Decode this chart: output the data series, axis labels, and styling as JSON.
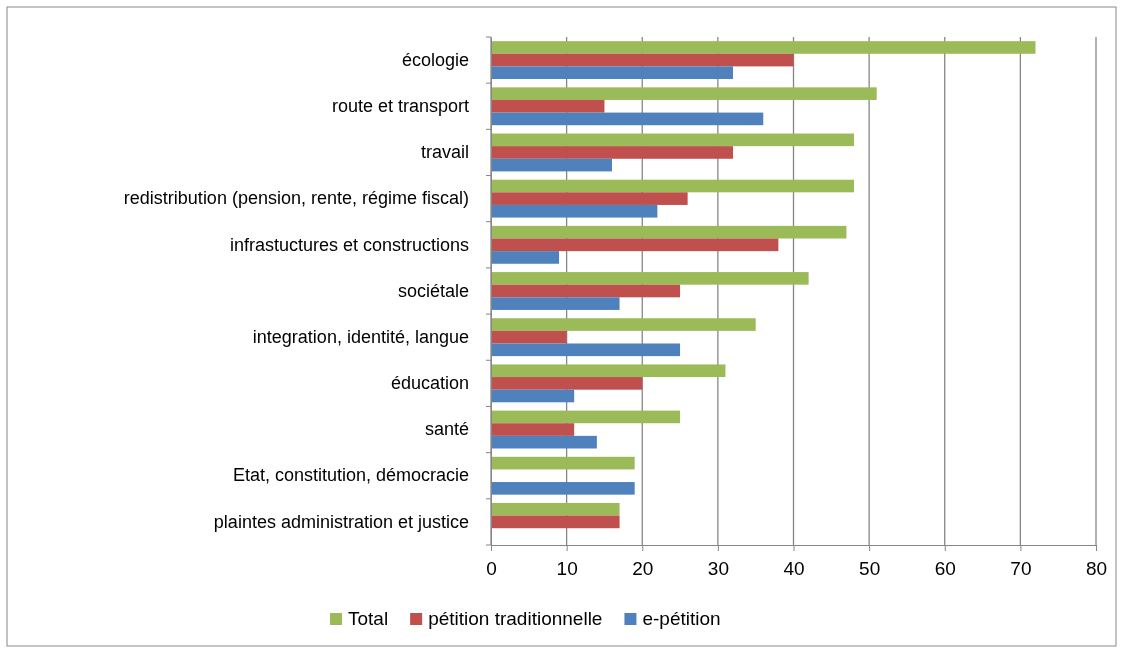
{
  "chart_data": {
    "type": "bar",
    "orientation": "horizontal",
    "categories": [
      "écologie",
      "route et transport",
      "travail",
      "redistribution (pension, rente, régime fiscal)",
      "infrastuctures et constructions",
      "sociétale",
      "integration, identité, langue",
      "éducation",
      "santé ",
      "Etat, constitution, démocracie",
      "plaintes administration et justice"
    ],
    "series": [
      {
        "name": "Total",
        "color": "#9bbb59",
        "values": [
          72,
          51,
          48,
          48,
          47,
          42,
          35,
          31,
          25,
          19,
          17
        ]
      },
      {
        "name": "pétition traditionnelle",
        "color": "#c0504d",
        "values": [
          40,
          15,
          32,
          26,
          38,
          25,
          10,
          20,
          11,
          null,
          17
        ]
      },
      {
        "name": "e-pétition",
        "color": "#4f81bd",
        "values": [
          32,
          36,
          16,
          22,
          9,
          17,
          25,
          11,
          14,
          19,
          null
        ]
      }
    ],
    "xlim": [
      0,
      80
    ],
    "xticks": [
      0,
      10,
      20,
      30,
      40,
      50,
      60,
      70,
      80
    ],
    "grid": "x",
    "legend": "bottom"
  }
}
